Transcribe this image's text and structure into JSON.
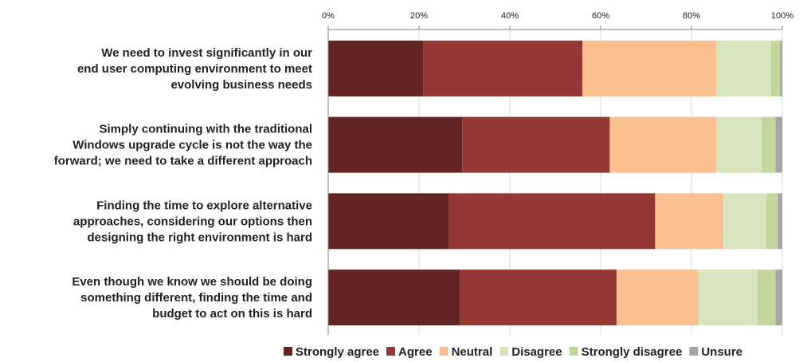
{
  "chart_data": {
    "type": "bar",
    "orientation": "horizontal",
    "stacked": "percent",
    "title": "",
    "xlabel": "",
    "ylabel": "",
    "xlim": [
      0,
      100
    ],
    "ticks": [
      "0%",
      "20%",
      "40%",
      "60%",
      "80%",
      "100%"
    ],
    "grid": true,
    "legend_position": "bottom",
    "categories": [
      [
        "We need to invest significantly in our",
        "end user computing environment to meet",
        "evolving business needs"
      ],
      [
        "Simply continuing with the traditional",
        "Windows upgrade cycle is not the way the",
        "forward; we need to take a different approach"
      ],
      [
        "Finding the time to explore alternative",
        "approaches, considering our options then",
        "designing the right environment is hard"
      ],
      [
        "Even though we know we should be doing",
        "something different, finding the time and",
        "budget to act on this is hard"
      ]
    ],
    "series": [
      {
        "name": "Strongly agree",
        "color": "#632523",
        "values": [
          21,
          29.5,
          26.5,
          29
        ]
      },
      {
        "name": "Agree",
        "color": "#953735",
        "values": [
          35,
          32.5,
          45.5,
          34.5
        ]
      },
      {
        "name": "Neutral",
        "color": "#FAC090",
        "values": [
          29.5,
          23.5,
          15,
          18
        ]
      },
      {
        "name": "Disagree",
        "color": "#D7E4BD",
        "values": [
          12,
          10,
          9.5,
          13
        ]
      },
      {
        "name": "Strongly disagree",
        "color": "#C3D69B",
        "values": [
          2,
          3,
          2.5,
          4
        ]
      },
      {
        "name": "Unsure",
        "color": "#A6A6A6",
        "values": [
          0.5,
          1.5,
          1,
          1.5
        ]
      }
    ]
  }
}
